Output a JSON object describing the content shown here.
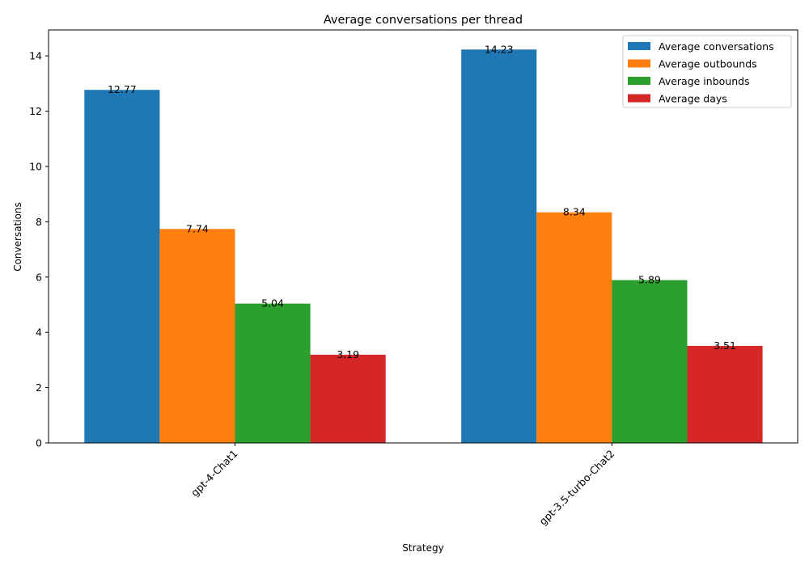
{
  "chart_data": {
    "type": "bar",
    "title": "Average conversations per thread",
    "xlabel": "Strategy",
    "ylabel": "Conversations",
    "categories": [
      "gpt-4-Chat1",
      "gpt-3.5-turbo-Chat2"
    ],
    "series": [
      {
        "name": "Average conversations",
        "values": [
          12.77,
          14.23
        ],
        "color": "#1f77b4"
      },
      {
        "name": "Average outbounds",
        "values": [
          7.74,
          8.34
        ],
        "color": "#ff7f0e"
      },
      {
        "name": "Average inbounds",
        "values": [
          5.04,
          5.89
        ],
        "color": "#2ca02c"
      },
      {
        "name": "Average days",
        "values": [
          3.19,
          3.51
        ],
        "color": "#d62728"
      }
    ],
    "ylim": [
      0,
      14.94
    ],
    "yticks": [
      0,
      2,
      4,
      6,
      8,
      10,
      12,
      14
    ],
    "grid": false,
    "legend_position": "upper right",
    "show_data_labels": true
  }
}
